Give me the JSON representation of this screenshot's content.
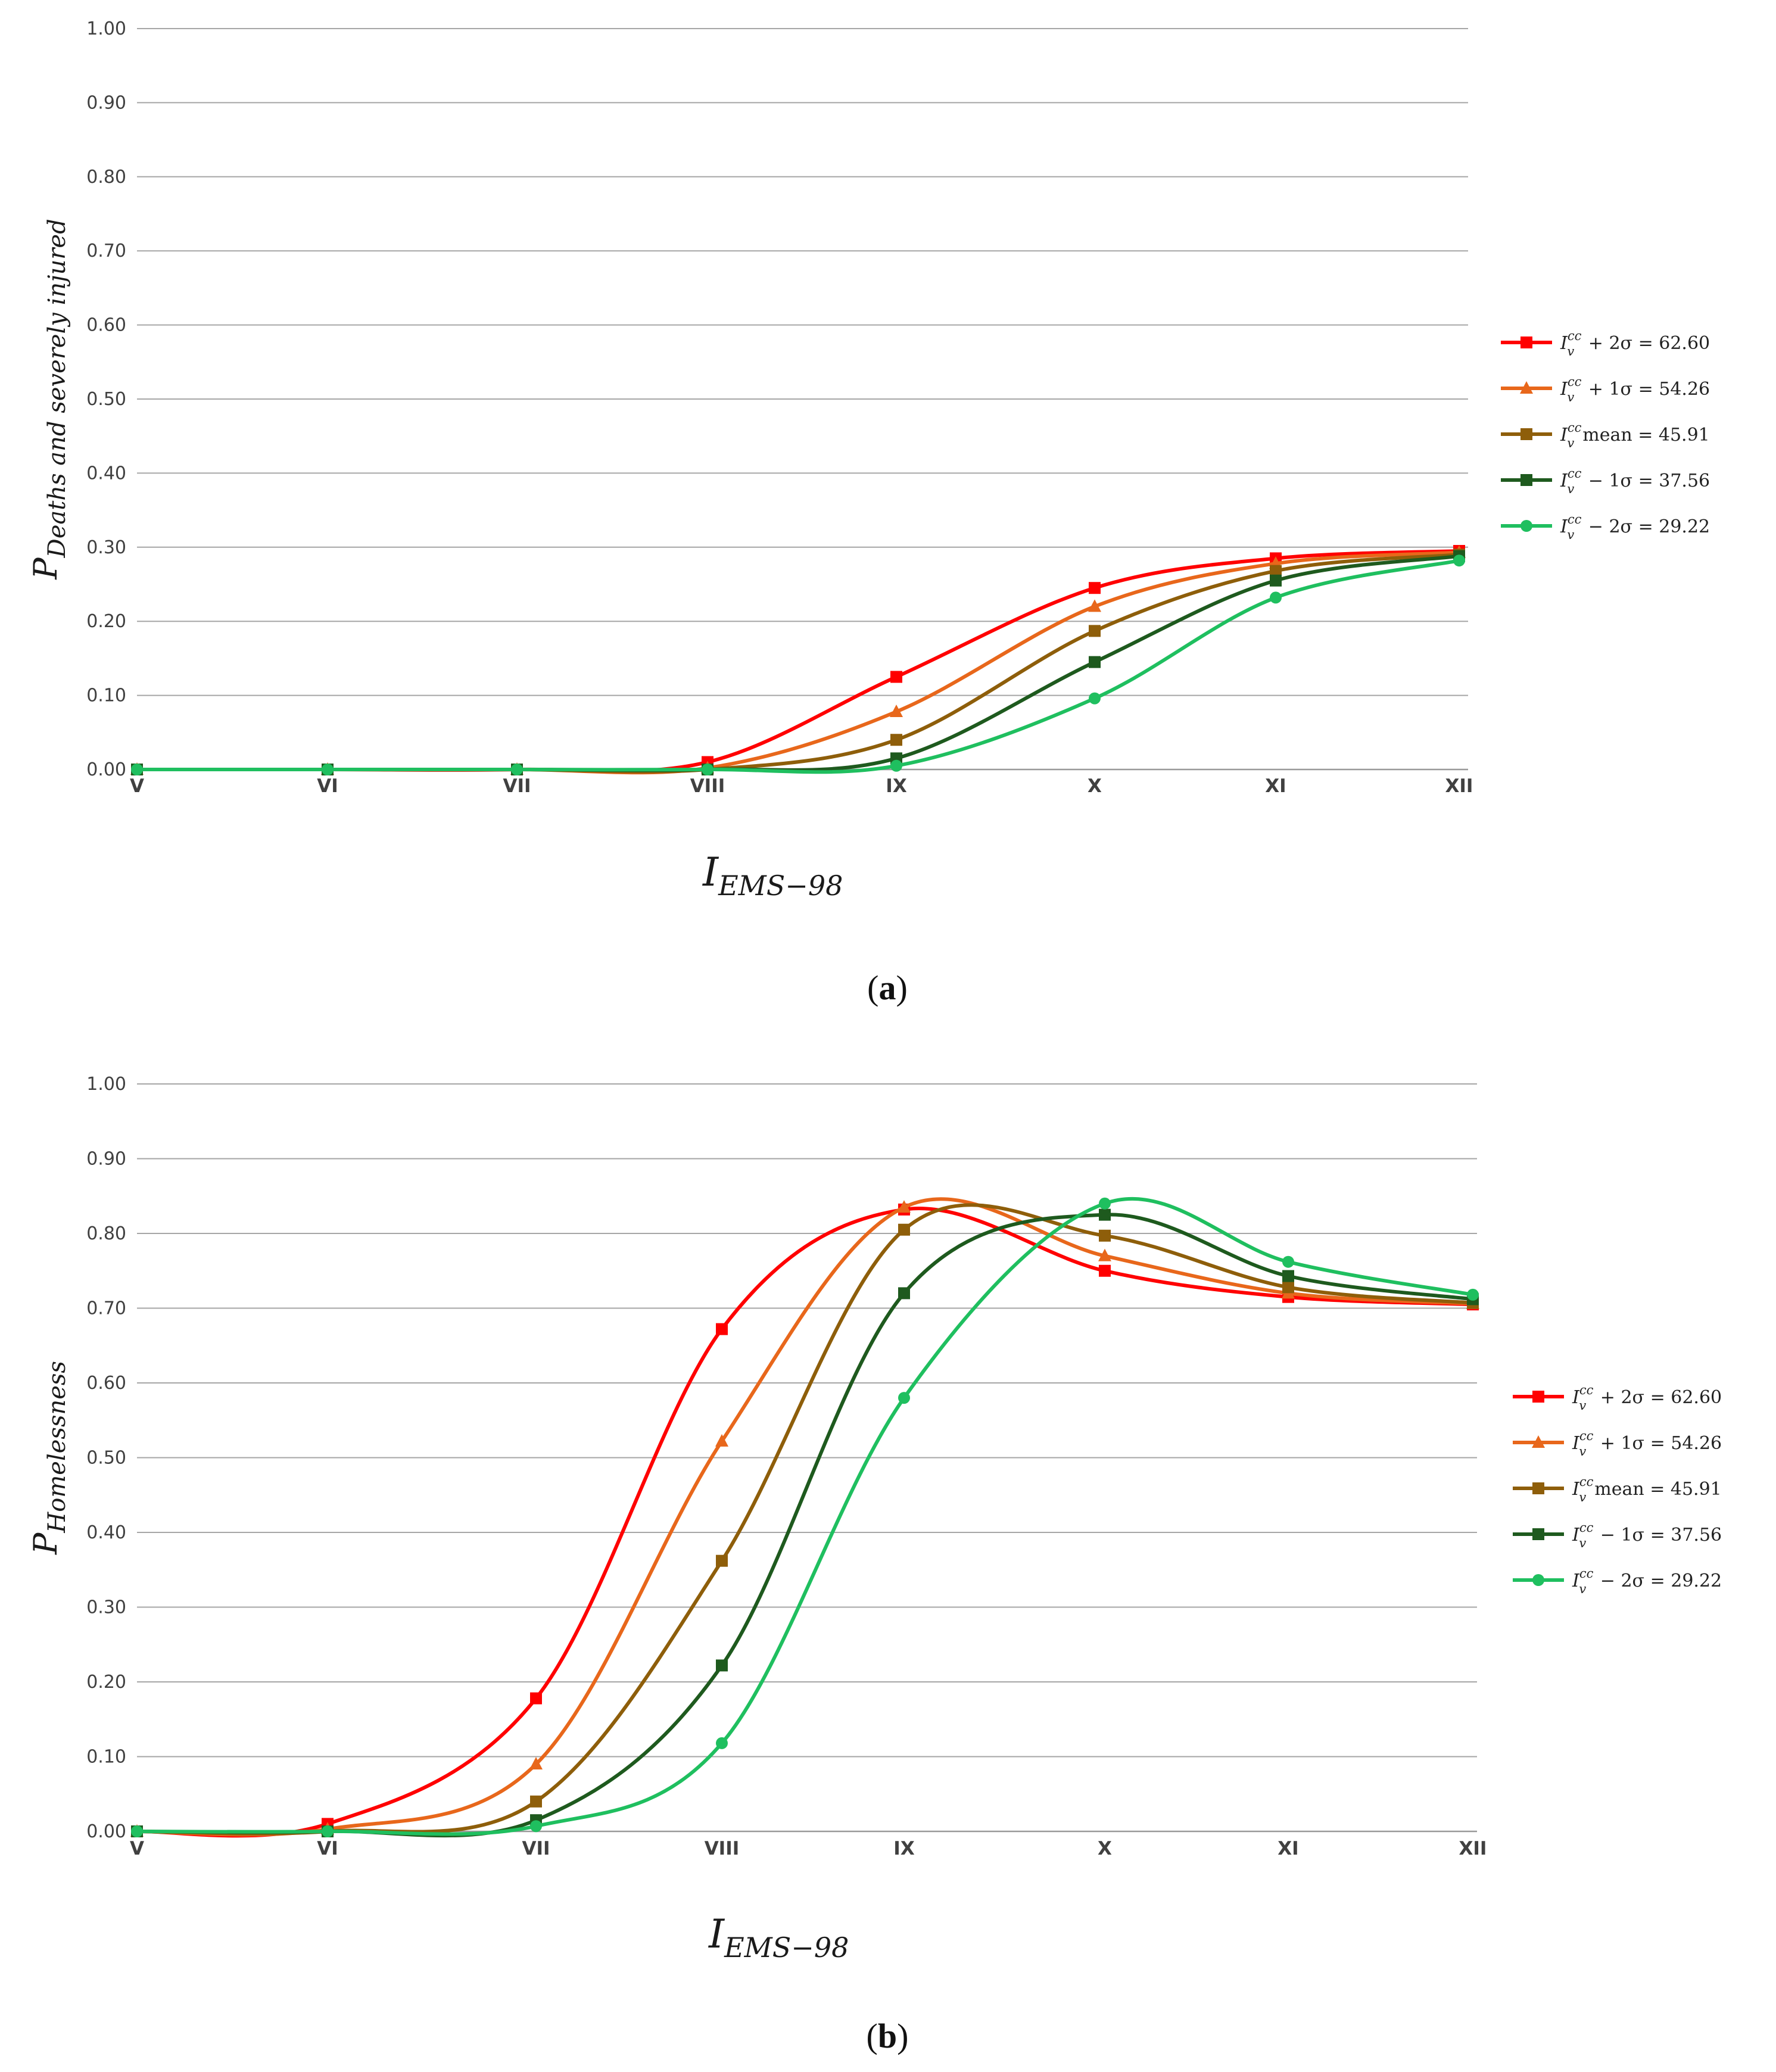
{
  "chart_data": [
    {
      "type": "line",
      "panel": "a",
      "caption_letter": "a",
      "caption_open": "(",
      "caption_close": ")",
      "ylabel_main": "P",
      "ylabel_sub": "Deaths and severely injured",
      "xlabel_main": "I",
      "xlabel_sub": "EMS−98",
      "ylim": [
        0,
        1
      ],
      "yticks": [
        "0.00",
        "0.10",
        "0.20",
        "0.30",
        "0.40",
        "0.50",
        "0.60",
        "0.70",
        "0.80",
        "0.90",
        "1.00"
      ],
      "categories": [
        "V",
        "VI",
        "VII",
        "VIII",
        "IX",
        "X",
        "XI",
        "XII"
      ],
      "grid": true,
      "legend_position": "right",
      "series": [
        {
          "name": "I_v^cc + 2σ = 62.60",
          "name_pre": "I",
          "name_sup": "cc",
          "name_sub": "v",
          "name_rest": " + 2σ = 62.60",
          "color": "#ff0000",
          "marker": "square",
          "values": [
            0,
            0,
            0,
            0.01,
            0.125,
            0.245,
            0.285,
            0.295
          ]
        },
        {
          "name": "I_v^cc + 1σ = 54.26",
          "name_pre": "I",
          "name_sup": "cc",
          "name_sub": "v",
          "name_rest": " + 1σ = 54.26",
          "color": "#e8671b",
          "marker": "triangle",
          "values": [
            0,
            0,
            0,
            0.002,
            0.078,
            0.22,
            0.278,
            0.293
          ]
        },
        {
          "name": "I_v^cc mean = 45.91",
          "name_pre": "I",
          "name_sup": "cc",
          "name_sub": "v",
          "name_rest": "mean  = 45.91",
          "color": "#8e5e0a",
          "marker": "square",
          "values": [
            0,
            0,
            0,
            0,
            0.04,
            0.187,
            0.268,
            0.29
          ]
        },
        {
          "name": "I_v^cc − 1σ = 37.56",
          "name_pre": "I",
          "name_sup": "cc",
          "name_sub": "v",
          "name_rest": "  − 1σ = 37.56",
          "color": "#1e5a1e",
          "marker": "square",
          "values": [
            0,
            0,
            0,
            0,
            0.015,
            0.145,
            0.255,
            0.288
          ]
        },
        {
          "name": "I_v^cc − 2σ = 29.22",
          "name_pre": "I",
          "name_sup": "cc",
          "name_sub": "v",
          "name_rest": "  − 2σ = 29.22",
          "color": "#1fbf5f",
          "marker": "circle",
          "values": [
            0,
            0,
            0,
            0,
            0.005,
            0.096,
            0.232,
            0.282
          ]
        }
      ]
    },
    {
      "type": "line",
      "panel": "b",
      "caption_letter": "b",
      "caption_open": "(",
      "caption_close": ")",
      "ylabel_main": "P",
      "ylabel_sub": "Homelessness",
      "xlabel_main": "I",
      "xlabel_sub": "EMS−98",
      "ylim": [
        0,
        1
      ],
      "yticks": [
        "0.00",
        "0.10",
        "0.20",
        "0.30",
        "0.40",
        "0.50",
        "0.60",
        "0.70",
        "0.80",
        "0.90",
        "1.00"
      ],
      "categories": [
        "V",
        "VI",
        "VII",
        "VIII",
        "IX",
        "X",
        "XI",
        "XII"
      ],
      "grid": true,
      "legend_position": "right",
      "series": [
        {
          "name": "I_v^cc + 2σ = 62.60",
          "name_pre": "I",
          "name_sup": "cc",
          "name_sub": "v",
          "name_rest": " + 2σ = 62.60",
          "color": "#ff0000",
          "marker": "square",
          "values": [
            0,
            0.01,
            0.178,
            0.672,
            0.832,
            0.75,
            0.715,
            0.705
          ]
        },
        {
          "name": "I_v^cc + 1σ = 54.26",
          "name_pre": "I",
          "name_sup": "cc",
          "name_sub": "v",
          "name_rest": " + 1σ = 54.26",
          "color": "#e8671b",
          "marker": "triangle",
          "values": [
            0,
            0.003,
            0.09,
            0.522,
            0.835,
            0.77,
            0.72,
            0.706
          ]
        },
        {
          "name": "I_v^cc mean = 45.91",
          "name_pre": "I",
          "name_sup": "cc",
          "name_sub": "v",
          "name_rest": "mean  = 45.91",
          "color": "#8e5e0a",
          "marker": "square",
          "values": [
            0,
            0,
            0.04,
            0.362,
            0.805,
            0.797,
            0.728,
            0.707
          ]
        },
        {
          "name": "I_v^cc − 1σ = 37.56",
          "name_pre": "I",
          "name_sup": "cc",
          "name_sub": "v",
          "name_rest": "  − 1σ = 37.56",
          "color": "#1e5a1e",
          "marker": "square",
          "values": [
            0,
            0,
            0.015,
            0.222,
            0.72,
            0.825,
            0.743,
            0.712
          ]
        },
        {
          "name": "I_v^cc − 2σ = 29.22",
          "name_pre": "I",
          "name_sup": "cc",
          "name_sub": "v",
          "name_rest": "  − 2σ = 29.22",
          "color": "#1fbf5f",
          "marker": "circle",
          "values": [
            0,
            0,
            0.007,
            0.118,
            0.58,
            0.84,
            0.762,
            0.718
          ]
        }
      ]
    }
  ]
}
